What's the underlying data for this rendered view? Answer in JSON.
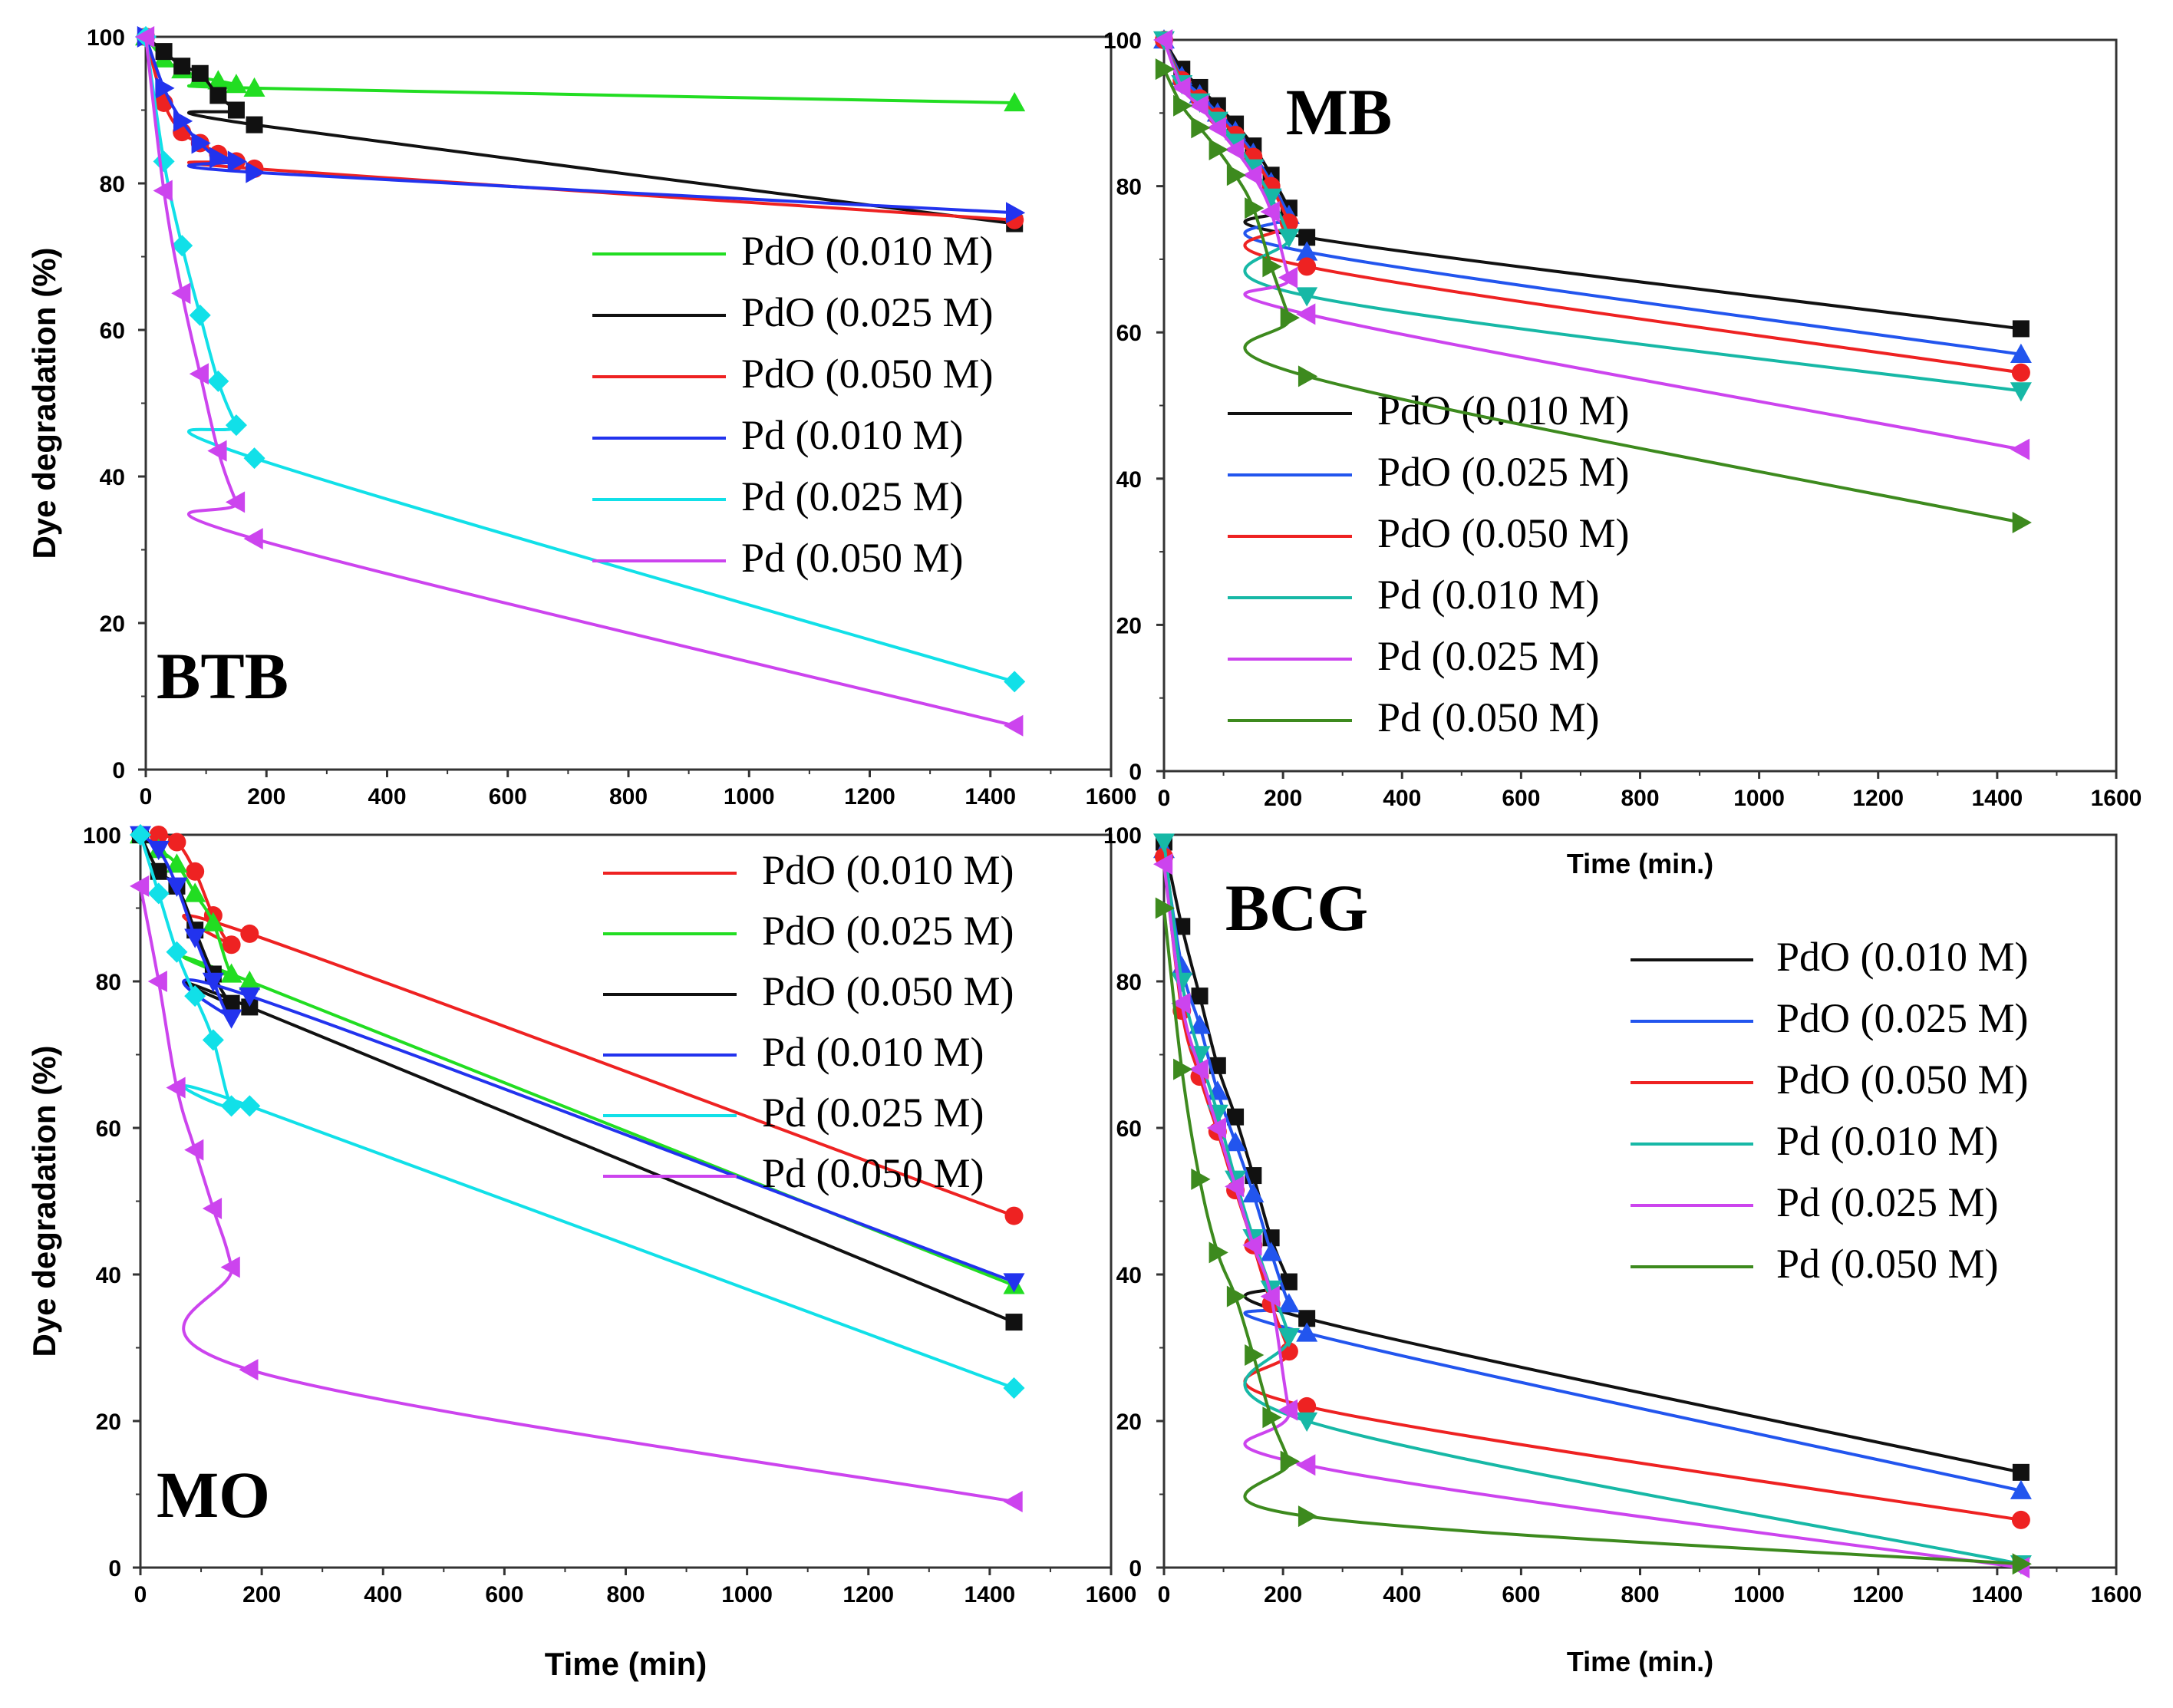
{
  "figure": {
    "shared_y_label": "Dye degradation (%)",
    "x_label_min": "Time (min)",
    "x_label_min_dot": "Time (min.)"
  },
  "chart_data": [
    {
      "id": "btb",
      "type": "line",
      "title": "BTB",
      "xlabel": "",
      "ylabel": "Dye degradation (%)",
      "xlim": [
        0,
        1600
      ],
      "ylim": [
        0,
        100
      ],
      "xticks": [
        0,
        200,
        400,
        600,
        800,
        1000,
        1200,
        1400,
        1600
      ],
      "yticks": [
        0,
        20,
        40,
        60,
        80,
        100
      ],
      "legend": "center-right",
      "series": [
        {
          "name": "PdO (0.010 M)",
          "color": "#22dd22",
          "marker": "triangle-up",
          "x": [
            0,
            30,
            60,
            90,
            120,
            150,
            180,
            1440
          ],
          "y": [
            100,
            97,
            95.5,
            94.5,
            94,
            93.5,
            93,
            91
          ]
        },
        {
          "name": "PdO (0.025 M)",
          "color": "#111111",
          "marker": "square",
          "x": [
            0,
            30,
            60,
            90,
            120,
            150,
            180,
            1440
          ],
          "y": [
            100,
            98,
            96,
            95,
            92,
            90,
            88,
            74.5
          ]
        },
        {
          "name": "PdO (0.050 M)",
          "color": "#ee2222",
          "marker": "circle",
          "x": [
            0,
            30,
            60,
            90,
            120,
            150,
            180,
            1440
          ],
          "y": [
            100,
            91,
            87,
            85.5,
            84,
            83,
            82,
            75
          ]
        },
        {
          "name": "Pd (0.010 M)",
          "color": "#2233ee",
          "marker": "triangle-right",
          "x": [
            0,
            30,
            60,
            90,
            120,
            150,
            180,
            1440
          ],
          "y": [
            100,
            93,
            88.5,
            85.5,
            83.5,
            83,
            81.5,
            76
          ]
        },
        {
          "name": "Pd (0.025 M)",
          "color": "#11e0e8",
          "marker": "diamond",
          "x": [
            0,
            30,
            60,
            90,
            120,
            150,
            180,
            1440
          ],
          "y": [
            100,
            83,
            71.5,
            62,
            53,
            47,
            42.5,
            12
          ]
        },
        {
          "name": "Pd (0.050 M)",
          "color": "#cc44ee",
          "marker": "triangle-left",
          "x": [
            0,
            30,
            60,
            90,
            120,
            150,
            180,
            1440
          ],
          "y": [
            100,
            79,
            65,
            54,
            43.5,
            36.5,
            31.5,
            6
          ]
        }
      ]
    },
    {
      "id": "mb",
      "type": "line",
      "title": "MB",
      "xlabel": "Time (min.)",
      "ylabel": "",
      "xlim": [
        0,
        1600
      ],
      "ylim": [
        0,
        100
      ],
      "xticks": [
        0,
        200,
        400,
        600,
        800,
        1000,
        1200,
        1400,
        1600
      ],
      "yticks": [
        0,
        20,
        40,
        60,
        80,
        100
      ],
      "legend": "center",
      "series": [
        {
          "name": "PdO (0.010 M)",
          "color": "#111111",
          "marker": "square",
          "x": [
            0,
            30,
            60,
            90,
            120,
            150,
            180,
            210,
            240,
            1440
          ],
          "y": [
            100,
            96,
            93.5,
            91,
            88.5,
            85.5,
            81.5,
            77,
            73,
            60.5
          ]
        },
        {
          "name": "PdO (0.025 M)",
          "color": "#2255ee",
          "marker": "triangle-up",
          "x": [
            0,
            30,
            60,
            90,
            120,
            150,
            180,
            210,
            240,
            1440
          ],
          "y": [
            100,
            95,
            92.5,
            90,
            87.5,
            84.5,
            80.5,
            76,
            71,
            57
          ]
        },
        {
          "name": "PdO (0.050 M)",
          "color": "#ee2222",
          "marker": "circle",
          "x": [
            0,
            30,
            60,
            90,
            120,
            150,
            180,
            210,
            240,
            1440
          ],
          "y": [
            100,
            94.5,
            92,
            89.5,
            87,
            84,
            80,
            75,
            69,
            54.5
          ]
        },
        {
          "name": "Pd (0.010 M)",
          "color": "#17b8a6",
          "marker": "triangle-down",
          "x": [
            0,
            30,
            60,
            90,
            120,
            150,
            180,
            210,
            240,
            1440
          ],
          "y": [
            100,
            94,
            91.5,
            89,
            86,
            82.5,
            78.5,
            73,
            65,
            52
          ]
        },
        {
          "name": "Pd (0.025 M)",
          "color": "#cc44ee",
          "marker": "triangle-left",
          "x": [
            0,
            30,
            60,
            90,
            120,
            150,
            180,
            210,
            240,
            1440
          ],
          "y": [
            100,
            93.5,
            91,
            88,
            85,
            81.5,
            76.5,
            67.5,
            62.5,
            44
          ]
        },
        {
          "name": "Pd (0.050 M)",
          "color": "#3d8a1e",
          "marker": "triangle-right",
          "x": [
            0,
            30,
            60,
            90,
            120,
            150,
            180,
            210,
            240,
            1440
          ],
          "y": [
            96,
            91,
            88,
            85,
            81.5,
            77,
            69,
            62,
            54,
            34
          ]
        }
      ]
    },
    {
      "id": "mo",
      "type": "line",
      "title": "MO",
      "xlabel": "Time (min)",
      "ylabel": "Dye degradation (%)",
      "xlim": [
        0,
        1600
      ],
      "ylim": [
        0,
        100
      ],
      "xticks": [
        0,
        200,
        400,
        600,
        800,
        1000,
        1200,
        1400,
        1600
      ],
      "yticks": [
        0,
        20,
        40,
        60,
        80,
        100
      ],
      "legend": "top-right",
      "series": [
        {
          "name": "PdO (0.010 M)",
          "color": "#ee2222",
          "marker": "circle",
          "x": [
            0,
            30,
            60,
            90,
            120,
            150,
            180,
            1440
          ],
          "y": [
            100,
            100,
            99,
            95,
            89,
            85,
            86.5,
            48
          ]
        },
        {
          "name": "PdO (0.025 M)",
          "color": "#22dd22",
          "marker": "triangle-up",
          "x": [
            0,
            30,
            60,
            90,
            120,
            150,
            180,
            1440
          ],
          "y": [
            100,
            98,
            96,
            92,
            88,
            81,
            80,
            38.5
          ]
        },
        {
          "name": "PdO (0.050 M)",
          "color": "#111111",
          "marker": "square",
          "x": [
            0,
            30,
            60,
            90,
            120,
            150,
            180,
            1440
          ],
          "y": [
            100,
            95,
            93,
            87,
            81,
            77,
            76.5,
            33.5
          ]
        },
        {
          "name": "Pd (0.010 M)",
          "color": "#2233ee",
          "marker": "triangle-down",
          "x": [
            0,
            30,
            60,
            90,
            120,
            150,
            180,
            1440
          ],
          "y": [
            100,
            98,
            93,
            86,
            80,
            75,
            78,
            39
          ]
        },
        {
          "name": "Pd (0.025 M)",
          "color": "#11e0e8",
          "marker": "diamond",
          "x": [
            0,
            30,
            60,
            90,
            120,
            150,
            180,
            1440
          ],
          "y": [
            100,
            92,
            84,
            78,
            72,
            63,
            63,
            24.5
          ]
        },
        {
          "name": "Pd (0.050 M)",
          "color": "#cc44ee",
          "marker": "triangle-left",
          "x": [
            0,
            30,
            60,
            90,
            120,
            150,
            180,
            1440
          ],
          "y": [
            93,
            80,
            65.5,
            57,
            49,
            41,
            27,
            9
          ]
        }
      ]
    },
    {
      "id": "bcg",
      "type": "line",
      "title": "BCG",
      "xlabel": "Time (min.)",
      "ylabel": "",
      "xlim": [
        0,
        1600
      ],
      "ylim": [
        0,
        100
      ],
      "xticks": [
        0,
        200,
        400,
        600,
        800,
        1000,
        1200,
        1400,
        1600
      ],
      "yticks": [
        0,
        20,
        40,
        60,
        80,
        100
      ],
      "legend": "center-right",
      "series": [
        {
          "name": "PdO (0.010 M)",
          "color": "#111111",
          "marker": "square",
          "x": [
            0,
            30,
            60,
            90,
            120,
            150,
            180,
            210,
            240,
            1440
          ],
          "y": [
            99,
            87.5,
            78,
            68.5,
            61.5,
            53.5,
            45,
            39,
            34,
            13
          ]
        },
        {
          "name": "PdO (0.025 M)",
          "color": "#2255ee",
          "marker": "triangle-up",
          "x": [
            0,
            30,
            60,
            90,
            120,
            150,
            180,
            210,
            240,
            1440
          ],
          "y": [
            98,
            82,
            74,
            65,
            58,
            51,
            43,
            36,
            32,
            10.5
          ]
        },
        {
          "name": "PdO (0.050 M)",
          "color": "#ee2222",
          "marker": "circle",
          "x": [
            0,
            30,
            60,
            90,
            120,
            150,
            180,
            210,
            240,
            1440
          ],
          "y": [
            97,
            76,
            67,
            59.5,
            51.5,
            44,
            36,
            29.5,
            22,
            6.5
          ]
        },
        {
          "name": "Pd (0.010 M)",
          "color": "#17b8a6",
          "marker": "triangle-down",
          "x": [
            0,
            30,
            60,
            90,
            120,
            150,
            180,
            210,
            240,
            1440
          ],
          "y": [
            99,
            80,
            70,
            62,
            53,
            45,
            38,
            31.5,
            20,
            0.5
          ]
        },
        {
          "name": "Pd (0.025 M)",
          "color": "#cc44ee",
          "marker": "triangle-left",
          "x": [
            0,
            30,
            60,
            90,
            120,
            150,
            180,
            210,
            240,
            1440
          ],
          "y": [
            96,
            77,
            68,
            60,
            52,
            44,
            37,
            21.5,
            14,
            0
          ]
        },
        {
          "name": "Pd (0.050 M)",
          "color": "#3d8a1e",
          "marker": "triangle-right",
          "x": [
            0,
            30,
            60,
            90,
            120,
            150,
            180,
            210,
            240,
            1440
          ],
          "y": [
            90,
            68,
            53,
            43,
            37,
            29,
            20.5,
            14.5,
            7,
            0.5
          ]
        }
      ]
    }
  ]
}
